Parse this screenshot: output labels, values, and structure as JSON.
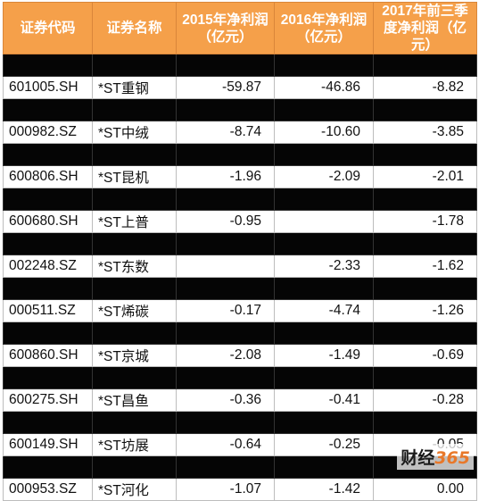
{
  "header": {
    "code": "证券代码",
    "name": "证券名称",
    "profit_2015": "2015年净利润（亿元）",
    "profit_2016": "2016年净利润（亿元）",
    "profit_2017q3": "2017年前三季度净利润（亿元）"
  },
  "rows": [
    {
      "code": "",
      "name": "",
      "p2015": "",
      "p2016": "",
      "p2017": "",
      "dark": true
    },
    {
      "code": "601005.SH",
      "name": "*ST重钢",
      "p2015": "-59.87",
      "p2016": "-46.86",
      "p2017": "-8.82",
      "dark": false
    },
    {
      "code": "",
      "name": "",
      "p2015": "",
      "p2016": "",
      "p2017": "",
      "dark": true
    },
    {
      "code": "000982.SZ",
      "name": "*ST中绒",
      "p2015": "-8.74",
      "p2016": "-10.60",
      "p2017": "-3.85",
      "dark": false
    },
    {
      "code": "",
      "name": "",
      "p2015": "",
      "p2016": "",
      "p2017": "",
      "dark": true
    },
    {
      "code": "600806.SH",
      "name": "*ST昆机",
      "p2015": "-1.96",
      "p2016": "-2.09",
      "p2017": "-2.01",
      "dark": false
    },
    {
      "code": "",
      "name": "",
      "p2015": "",
      "p2016": "",
      "p2017": "",
      "dark": true
    },
    {
      "code": "600680.SH",
      "name": "*ST上普",
      "p2015": "-0.95",
      "p2016": "",
      "p2017": "-1.78",
      "dark": false
    },
    {
      "code": "",
      "name": "",
      "p2015": "",
      "p2016": "",
      "p2017": "",
      "dark": true
    },
    {
      "code": "002248.SZ",
      "name": "*ST东数",
      "p2015": "",
      "p2016": "-2.33",
      "p2017": "-1.62",
      "dark": false
    },
    {
      "code": "",
      "name": "",
      "p2015": "",
      "p2016": "",
      "p2017": "",
      "dark": true
    },
    {
      "code": "000511.SZ",
      "name": "*ST烯碳",
      "p2015": "-0.17",
      "p2016": "-4.74",
      "p2017": "-1.26",
      "dark": false
    },
    {
      "code": "",
      "name": "",
      "p2015": "",
      "p2016": "",
      "p2017": "",
      "dark": true
    },
    {
      "code": "600860.SH",
      "name": "*ST京城",
      "p2015": "-2.08",
      "p2016": "-1.49",
      "p2017": "-0.69",
      "dark": false
    },
    {
      "code": "",
      "name": "",
      "p2015": "",
      "p2016": "",
      "p2017": "",
      "dark": true
    },
    {
      "code": "600275.SH",
      "name": "*ST昌鱼",
      "p2015": "-0.36",
      "p2016": "-0.41",
      "p2017": "-0.28",
      "dark": false
    },
    {
      "code": "",
      "name": "",
      "p2015": "",
      "p2016": "",
      "p2017": "",
      "dark": true
    },
    {
      "code": "600149.SH",
      "name": "*ST坊展",
      "p2015": "-0.64",
      "p2016": "-0.25",
      "p2017": "-0.05",
      "dark": false
    },
    {
      "code": "",
      "name": "",
      "p2015": "",
      "p2016": "",
      "p2017": "",
      "dark": true
    },
    {
      "code": "000953.SZ",
      "name": "*ST河化",
      "p2015": "-1.07",
      "p2016": "-1.42",
      "p2017": "0.00",
      "dark": false
    }
  ],
  "watermark": {
    "brand": "财经",
    "num": "365"
  }
}
